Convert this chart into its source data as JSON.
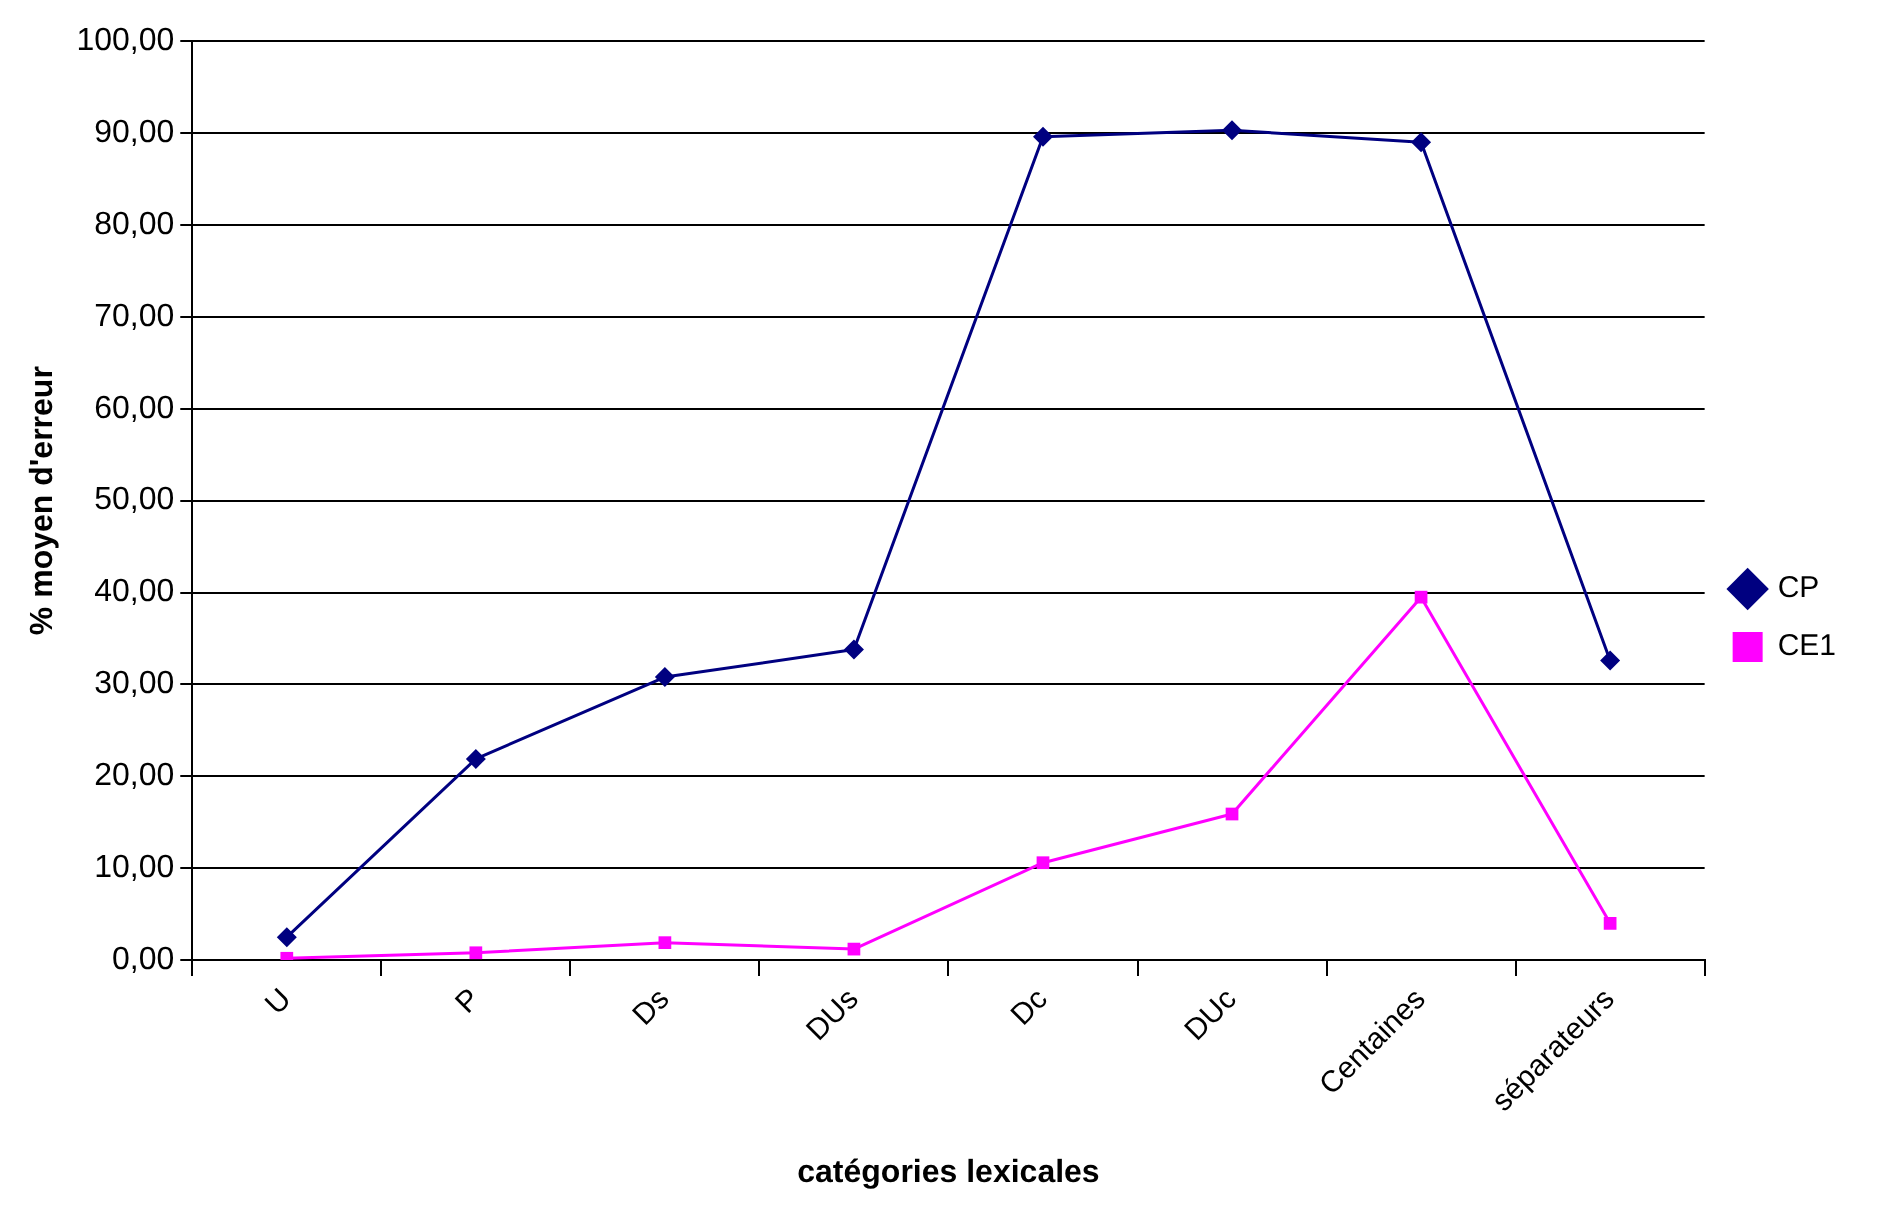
{
  "chart_data": {
    "type": "line",
    "xlabel": "catégories lexicales",
    "ylabel": "% moyen d'erreur",
    "categories": [
      "U",
      "P",
      "Ds",
      "DUs",
      "Dc",
      "DUc",
      "Centaines",
      "séparateurs"
    ],
    "series": [
      {
        "name": "CP",
        "color": "#000080",
        "marker": "diamond",
        "values": [
          2.5,
          21.9,
          30.8,
          33.8,
          89.6,
          90.3,
          89.0,
          32.6
        ]
      },
      {
        "name": "CE1",
        "color": "#ff00ff",
        "marker": "square",
        "values": [
          0.2,
          0.8,
          1.9,
          1.2,
          10.6,
          15.9,
          39.5,
          4.0
        ]
      }
    ],
    "ylim": [
      0,
      100
    ],
    "yticks": [
      {
        "value": 0,
        "label": "0,00"
      },
      {
        "value": 10,
        "label": "10,00"
      },
      {
        "value": 20,
        "label": "20,00"
      },
      {
        "value": 30,
        "label": "30,00"
      },
      {
        "value": 40,
        "label": "40,00"
      },
      {
        "value": 50,
        "label": "50,00"
      },
      {
        "value": 60,
        "label": "60,00"
      },
      {
        "value": 70,
        "label": "70,00"
      },
      {
        "value": 80,
        "label": "80,00"
      },
      {
        "value": 90,
        "label": "90,00"
      },
      {
        "value": 100,
        "label": "100,00"
      }
    ],
    "grid": "y",
    "legend": "right",
    "line_style": "solid"
  }
}
